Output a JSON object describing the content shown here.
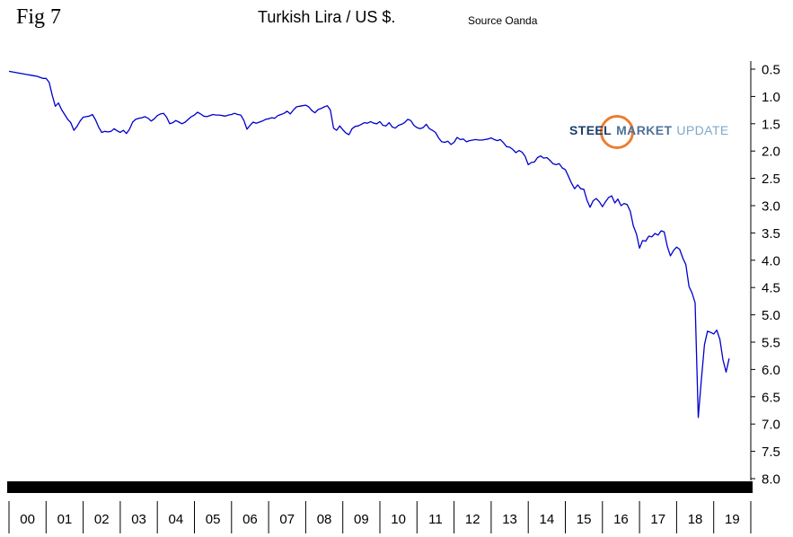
{
  "figure_label": "Fig 7",
  "title": "Turkish Lira / US $.",
  "source": "Source Oanda",
  "logo": {
    "part1": "STEEL",
    "part2": "MARKET",
    "part3": "UPDATE",
    "colors": {
      "orange": "#ed7d31",
      "navy": "#1c3e6e",
      "slate": "#4f7299",
      "light": "#7fa8cc"
    }
  },
  "chart_data": {
    "type": "line",
    "title": "Turkish Lira / US $.",
    "subtitle": "Source Oanda",
    "xlabel": "",
    "ylabel": "",
    "line_color": "#0000cd",
    "grid": false,
    "legend": "none",
    "y_axis_side": "right",
    "y_axis_inverted": true,
    "ylim": [
      0.5,
      8.0
    ],
    "xlim": [
      2000,
      2020
    ],
    "y_ticks": [
      0.5,
      1.0,
      1.5,
      2.0,
      2.5,
      3.0,
      3.5,
      4.0,
      4.5,
      5.0,
      5.5,
      6.0,
      6.5,
      7.0,
      7.5,
      8.0
    ],
    "y_tick_labels": [
      "0.5",
      "1.0",
      "1.5",
      "2.0",
      "2.5",
      "3.0",
      "3.5",
      "4.0",
      "4.5",
      "5.0",
      "5.5",
      "6.0",
      "6.5",
      "7.0",
      "7.5",
      "8.0"
    ],
    "x_tick_labels": [
      "00",
      "01",
      "02",
      "03",
      "04",
      "05",
      "06",
      "07",
      "08",
      "09",
      "10",
      "11",
      "12",
      "13",
      "14",
      "15",
      "16",
      "17",
      "18",
      "19"
    ],
    "series": [
      {
        "name": "Turkish Lira per US Dollar",
        "x_start_year": 2000,
        "points_per_year": 12,
        "values": [
          0.54,
          0.55,
          0.56,
          0.57,
          0.58,
          0.59,
          0.6,
          0.61,
          0.62,
          0.63,
          0.65,
          0.67,
          0.67,
          0.74,
          0.98,
          1.18,
          1.12,
          1.24,
          1.33,
          1.42,
          1.48,
          1.62,
          1.55,
          1.45,
          1.38,
          1.37,
          1.36,
          1.33,
          1.43,
          1.56,
          1.66,
          1.64,
          1.65,
          1.64,
          1.59,
          1.63,
          1.66,
          1.62,
          1.68,
          1.6,
          1.47,
          1.42,
          1.4,
          1.39,
          1.37,
          1.4,
          1.45,
          1.41,
          1.35,
          1.32,
          1.31,
          1.38,
          1.5,
          1.48,
          1.44,
          1.47,
          1.5,
          1.47,
          1.42,
          1.37,
          1.34,
          1.29,
          1.32,
          1.36,
          1.37,
          1.35,
          1.33,
          1.34,
          1.34,
          1.35,
          1.36,
          1.34,
          1.33,
          1.31,
          1.33,
          1.34,
          1.44,
          1.6,
          1.53,
          1.47,
          1.49,
          1.47,
          1.45,
          1.42,
          1.41,
          1.39,
          1.4,
          1.35,
          1.33,
          1.31,
          1.27,
          1.32,
          1.25,
          1.19,
          1.18,
          1.17,
          1.16,
          1.19,
          1.26,
          1.3,
          1.24,
          1.22,
          1.19,
          1.17,
          1.25,
          1.58,
          1.62,
          1.54,
          1.61,
          1.67,
          1.7,
          1.59,
          1.55,
          1.54,
          1.51,
          1.48,
          1.49,
          1.46,
          1.49,
          1.5,
          1.46,
          1.53,
          1.54,
          1.48,
          1.56,
          1.58,
          1.53,
          1.51,
          1.48,
          1.42,
          1.44,
          1.53,
          1.57,
          1.59,
          1.57,
          1.51,
          1.59,
          1.62,
          1.66,
          1.76,
          1.83,
          1.84,
          1.82,
          1.88,
          1.84,
          1.75,
          1.79,
          1.78,
          1.83,
          1.81,
          1.8,
          1.79,
          1.8,
          1.8,
          1.79,
          1.78,
          1.76,
          1.79,
          1.81,
          1.79,
          1.85,
          1.92,
          1.93,
          1.97,
          2.03,
          1.99,
          2.02,
          2.1,
          2.25,
          2.21,
          2.2,
          2.12,
          2.09,
          2.13,
          2.12,
          2.17,
          2.23,
          2.25,
          2.23,
          2.31,
          2.34,
          2.46,
          2.59,
          2.69,
          2.62,
          2.69,
          2.7,
          2.9,
          3.03,
          2.91,
          2.87,
          2.93,
          3.02,
          2.93,
          2.85,
          2.82,
          2.95,
          2.88,
          3.0,
          2.96,
          2.98,
          3.1,
          3.37,
          3.52,
          3.78,
          3.64,
          3.65,
          3.56,
          3.57,
          3.51,
          3.54,
          3.46,
          3.48,
          3.75,
          3.92,
          3.82,
          3.76,
          3.8,
          3.96,
          4.08,
          4.48,
          4.6,
          4.78,
          6.88,
          6.2,
          5.55,
          5.3,
          5.32,
          5.35,
          5.28,
          5.45,
          5.82,
          6.05,
          5.8
        ]
      }
    ]
  }
}
